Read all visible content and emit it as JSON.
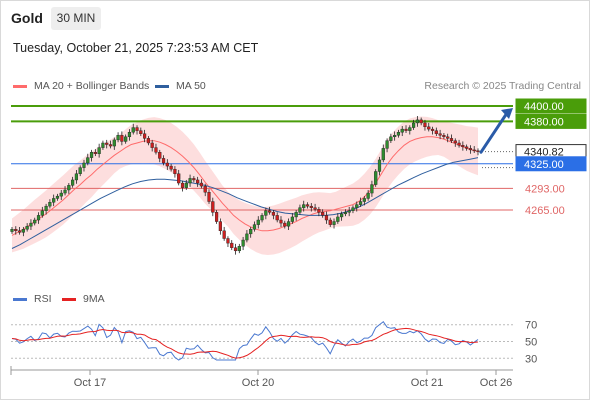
{
  "header": {
    "symbol": "Gold",
    "timeframe": "30 MIN",
    "datetime": "Tuesday, October 21, 2025 7:23:53 AM CET"
  },
  "legend": {
    "ma20": "MA 20 + Bollinger Bands",
    "ma50": "MA 50",
    "credit": "Research © 2025 Trading Central",
    "ma20_color": "#ff6b6b",
    "ma50_color": "#2f5f9e"
  },
  "levels": [
    {
      "value": 4400,
      "label": "4400.00",
      "kind": "target"
    },
    {
      "value": 4380,
      "label": "4380.00",
      "kind": "target"
    },
    {
      "value": 4340.82,
      "label": "4340.82",
      "kind": "last"
    },
    {
      "value": 4325,
      "label": "4325.00",
      "kind": "pivot"
    },
    {
      "value": 4293,
      "label": "4293.00",
      "kind": "support"
    },
    {
      "value": 4265,
      "label": "4265.00",
      "kind": "support"
    }
  ],
  "colors": {
    "target": "#4a9d0a",
    "pivot": "#2b6fe6",
    "support": "#e06666",
    "last": "#333333",
    "rsi": "#4a78d0",
    "rsi_ma": "#e52222",
    "bb_fill": "#fcd3d3",
    "candle_up": "#2e8b2e",
    "candle_down": "#cc1f1f"
  },
  "rsi_legend": {
    "rsi": "RSI",
    "ma": "9MA",
    "levels": [
      "70",
      "50",
      "30"
    ]
  },
  "xaxis": {
    "labels": [
      "Oct 17",
      "Oct 20",
      "Oct 21",
      "Oct 26"
    ]
  },
  "chart_data": {
    "type": "candlestick",
    "price_range": [
      4195,
      4410
    ],
    "rsi_range": [
      22,
      78
    ],
    "close": [
      4240,
      4238,
      4236,
      4240,
      4244,
      4248,
      4252,
      4258,
      4264,
      4270,
      4275,
      4280,
      4283,
      4287,
      4291,
      4297,
      4304,
      4312,
      4320,
      4326,
      4333,
      4340,
      4338,
      4346,
      4352,
      4350,
      4348,
      4356,
      4362,
      4354,
      4360,
      4366,
      4372,
      4368,
      4364,
      4358,
      4352,
      4346,
      4340,
      4332,
      4326,
      4322,
      4318,
      4312,
      4300,
      4294,
      4300,
      4306,
      4304,
      4300,
      4296,
      4288,
      4276,
      4262,
      4250,
      4238,
      4228,
      4222,
      4216,
      4212,
      4218,
      4226,
      4234,
      4240,
      4246,
      4252,
      4258,
      4264,
      4262,
      4258,
      4252,
      4248,
      4244,
      4250,
      4256,
      4262,
      4268,
      4272,
      4270,
      4268,
      4266,
      4262,
      4258,
      4252,
      4246,
      4250,
      4256,
      4260,
      4262,
      4264,
      4268,
      4272,
      4276,
      4280,
      4287,
      4298,
      4315,
      4330,
      4345,
      4355,
      4360,
      4362,
      4366,
      4370,
      4368,
      4372,
      4378,
      4382,
      4378,
      4373,
      4370,
      4368,
      4364,
      4362,
      4360,
      4358,
      4355,
      4352,
      4349,
      4347,
      4345,
      4343,
      4342,
      4341
    ],
    "ma20": [
      4232,
      4236,
      4240,
      4245,
      4250,
      4255,
      4260,
      4266,
      4272,
      4278,
      4285,
      4292,
      4298,
      4305,
      4311,
      4318,
      4324,
      4330,
      4336,
      4341,
      4346,
      4350,
      4352,
      4354,
      4355,
      4355,
      4353,
      4350,
      4346,
      4341,
      4335,
      4328,
      4320,
      4311,
      4301,
      4292,
      4283,
      4274,
      4266,
      4258,
      4252,
      4247,
      4243,
      4240,
      4238,
      4238,
      4239,
      4241,
      4244,
      4247,
      4250,
      4254,
      4257,
      4260,
      4262,
      4263,
      4264,
      4266,
      4268,
      4270,
      4272,
      4276,
      4282,
      4290,
      4300,
      4312,
      4324,
      4334,
      4342,
      4349,
      4354,
      4357,
      4359,
      4360,
      4360,
      4359,
      4357,
      4354,
      4351,
      4348,
      4345,
      4343,
      4341
    ],
    "ma50": [
      4215,
      4220,
      4226,
      4232,
      4238,
      4244,
      4250,
      4256,
      4262,
      4268,
      4274,
      4280,
      4285,
      4290,
      4295,
      4299,
      4302,
      4304,
      4305,
      4305,
      4304,
      4303,
      4301,
      4299,
      4297,
      4294,
      4290,
      4286,
      4281,
      4277,
      4273,
      4269,
      4266,
      4263,
      4261,
      4260,
      4259,
      4258,
      4258,
      4258,
      4259,
      4261,
      4264,
      4268,
      4273,
      4279,
      4285,
      4291,
      4297,
      4302,
      4307,
      4312,
      4316,
      4320,
      4324,
      4327,
      4329,
      4331,
      4333
    ]
  }
}
